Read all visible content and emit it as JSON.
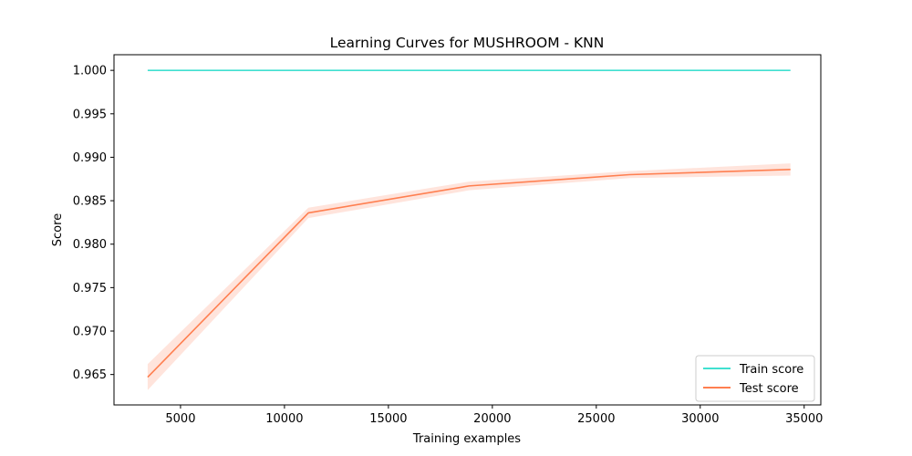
{
  "chart_data": {
    "type": "line",
    "title": "Learning Curves for MUSHROOM - KNN",
    "xlabel": "Training examples",
    "ylabel": "Score",
    "xlim": [
      1800,
      35800
    ],
    "ylim": [
      0.9615,
      1.0018
    ],
    "xticks": [
      5000,
      10000,
      15000,
      20000,
      25000,
      30000,
      35000
    ],
    "xtick_labels": [
      "5000",
      "10000",
      "15000",
      "20000",
      "25000",
      "30000",
      "35000"
    ],
    "yticks": [
      0.965,
      0.97,
      0.975,
      0.98,
      0.985,
      0.99,
      0.995,
      1.0
    ],
    "ytick_labels": [
      "0.965",
      "0.970",
      "0.975",
      "0.980",
      "0.985",
      "0.990",
      "0.995",
      "1.000"
    ],
    "grid": false,
    "legend_position": "lower-right",
    "x": [
      3420,
      11150,
      18880,
      26600,
      34340
    ],
    "series": [
      {
        "name": "Train score",
        "color": "#40e0d0",
        "values": [
          1.0,
          1.0,
          1.0,
          1.0,
          1.0
        ],
        "band_lower": [
          1.0,
          1.0,
          1.0,
          1.0,
          1.0
        ],
        "band_upper": [
          1.0,
          1.0,
          1.0,
          1.0,
          1.0
        ]
      },
      {
        "name": "Test score",
        "color": "#ff7f50",
        "band_color": "#ffe4dc",
        "values": [
          0.9647,
          0.9836,
          0.9867,
          0.988,
          0.9886
        ],
        "band_lower": [
          0.9632,
          0.983,
          0.9862,
          0.9876,
          0.9879
        ],
        "band_upper": [
          0.9662,
          0.9842,
          0.9872,
          0.9884,
          0.9893
        ]
      }
    ]
  }
}
